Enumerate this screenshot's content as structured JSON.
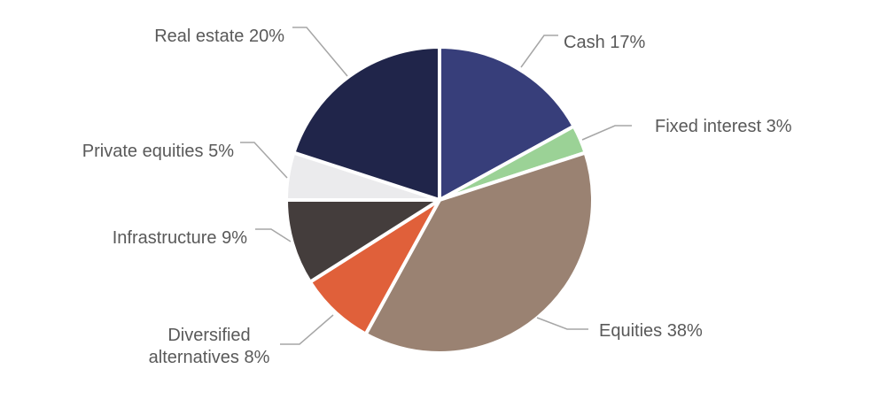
{
  "chart_data": {
    "type": "pie",
    "title": "",
    "start_angle_deg": 0,
    "direction": "clockwise",
    "categories": [
      "Cash",
      "Fixed interest",
      "Equities",
      "Diversified alternatives",
      "Infrastructure",
      "Private equities",
      "Real estate"
    ],
    "values": [
      17,
      3,
      38,
      8,
      9,
      5,
      20
    ],
    "unit": "%",
    "colors": [
      "#373E7A",
      "#9BD296",
      "#9A8272",
      "#E0603A",
      "#443D3C",
      "#EBEBED",
      "#20254A"
    ],
    "labels": [
      "Cash 17%",
      "Fixed interest 3%",
      "Equities 38%",
      "Diversified alternatives 8%",
      "Infrastructure 9%",
      "Private equities 5%",
      "Real estate 20%"
    ],
    "legend": "none (data labels with leader lines)",
    "grid": false
  },
  "labels": {
    "cash": "Cash 17%",
    "fixed_interest": "Fixed interest 3%",
    "equities": "Equities 38%",
    "diversified_line1": "Diversified",
    "diversified_line2": "alternatives 8%",
    "infrastructure": "Infrastructure 9%",
    "private_equities": "Private equities 5%",
    "real_estate": "Real estate 20%"
  },
  "style": {
    "label_color": "#595959",
    "leader_color": "#A6A6A6",
    "separator_color": "#FFFFFF"
  }
}
